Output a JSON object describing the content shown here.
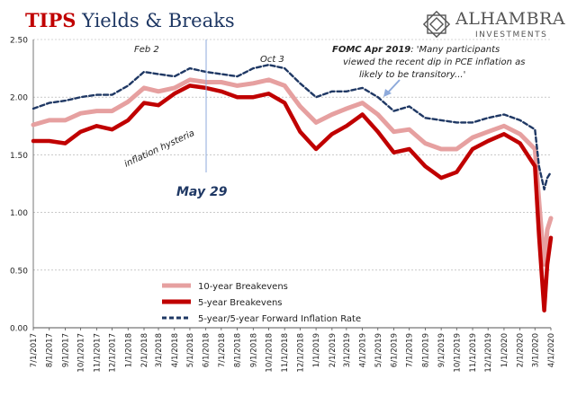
{
  "title": {
    "accent": "TIPS",
    "rest": " Yields & Breaks"
  },
  "logo": {
    "name": "ALHAMBRA",
    "sub": "INVESTMENTS",
    "icon": "alhambra-star-logo-icon"
  },
  "colors": {
    "ten_year": "#e6a0a0",
    "five_year": "#c00000",
    "forward": "#1f3864",
    "title_blue": "#1f3864",
    "title_red": "#c00000",
    "axis_text": "#222222",
    "grid": "#aaaaaa",
    "marker": "#8eaadb"
  },
  "annotations": {
    "feb2": "Feb 2",
    "oct3": "Oct 3",
    "hysteria": "inflation hysteria",
    "may29": "May 29",
    "fomc_bold": "FOMC Apr 2019",
    "fomc_line1": ": 'Many participants",
    "fomc_line2": "viewed the recent dip in PCE inflation as",
    "fomc_line3": "likely to be transitory...'"
  },
  "chart_data": {
    "type": "line",
    "title": "TIPS Yields & Breaks",
    "xlabel": "",
    "ylabel": "",
    "ylim": [
      0,
      2.5
    ],
    "xlim": [
      "2017-07-01",
      "2020-04-01"
    ],
    "grid": true,
    "legend_placement": "bottom-center",
    "y_ticks": [
      "0.00",
      "0.50",
      "1.00",
      "1.50",
      "2.00",
      "2.50"
    ],
    "x_ticks": [
      "7/1/2017",
      "8/1/2017",
      "9/1/2017",
      "10/1/2017",
      "11/1/2017",
      "12/1/2017",
      "1/1/2018",
      "2/1/2018",
      "3/1/2018",
      "4/1/2018",
      "5/1/2018",
      "6/1/2018",
      "7/1/2018",
      "8/1/2018",
      "9/1/2018",
      "10/1/2018",
      "11/1/2018",
      "12/1/2018",
      "1/1/2019",
      "2/1/2019",
      "3/1/2019",
      "4/1/2019",
      "5/1/2019",
      "6/1/2019",
      "7/1/2019",
      "8/1/2019",
      "9/1/2019",
      "10/1/2019",
      "11/1/2019",
      "12/1/2019",
      "1/1/2020",
      "2/1/2020",
      "3/1/2020",
      "4/1/2020"
    ],
    "x": [
      "2017-07-01",
      "2017-08-01",
      "2017-09-01",
      "2017-10-01",
      "2017-11-01",
      "2017-12-01",
      "2018-01-01",
      "2018-02-01",
      "2018-03-01",
      "2018-04-01",
      "2018-05-01",
      "2018-06-01",
      "2018-07-01",
      "2018-08-01",
      "2018-09-01",
      "2018-10-01",
      "2018-11-01",
      "2018-12-01",
      "2019-01-01",
      "2019-02-01",
      "2019-03-01",
      "2019-04-01",
      "2019-05-01",
      "2019-06-01",
      "2019-07-01",
      "2019-08-01",
      "2019-09-01",
      "2019-10-01",
      "2019-11-01",
      "2019-12-01",
      "2020-01-01",
      "2020-02-01",
      "2020-03-01",
      "2020-03-09",
      "2020-03-19",
      "2020-03-25",
      "2020-04-01"
    ],
    "series": [
      {
        "name": "10-year Breakevens",
        "values": [
          1.76,
          1.8,
          1.8,
          1.86,
          1.88,
          1.88,
          1.96,
          2.08,
          2.05,
          2.08,
          2.15,
          2.13,
          2.13,
          2.1,
          2.12,
          2.15,
          2.1,
          1.92,
          1.78,
          1.85,
          1.9,
          1.95,
          1.85,
          1.7,
          1.72,
          1.6,
          1.55,
          1.55,
          1.65,
          1.7,
          1.75,
          1.68,
          1.55,
          1.1,
          0.55,
          0.85,
          0.95
        ]
      },
      {
        "name": "5-year Breakevens",
        "values": [
          1.62,
          1.62,
          1.6,
          1.7,
          1.75,
          1.72,
          1.8,
          1.95,
          1.93,
          2.03,
          2.1,
          2.08,
          2.05,
          2.0,
          2.0,
          2.03,
          1.95,
          1.7,
          1.55,
          1.68,
          1.75,
          1.85,
          1.7,
          1.52,
          1.55,
          1.4,
          1.3,
          1.35,
          1.55,
          1.62,
          1.68,
          1.6,
          1.4,
          0.8,
          0.15,
          0.55,
          0.78
        ]
      },
      {
        "name": "5-year/5-year Forward Inflation Rate",
        "values": [
          1.9,
          1.95,
          1.97,
          2.0,
          2.02,
          2.02,
          2.1,
          2.22,
          2.2,
          2.18,
          2.25,
          2.22,
          2.2,
          2.18,
          2.25,
          2.28,
          2.25,
          2.12,
          2.0,
          2.05,
          2.05,
          2.08,
          2.0,
          1.88,
          1.92,
          1.82,
          1.8,
          1.78,
          1.78,
          1.82,
          1.85,
          1.8,
          1.72,
          1.4,
          1.2,
          1.3,
          1.35
        ]
      }
    ]
  }
}
